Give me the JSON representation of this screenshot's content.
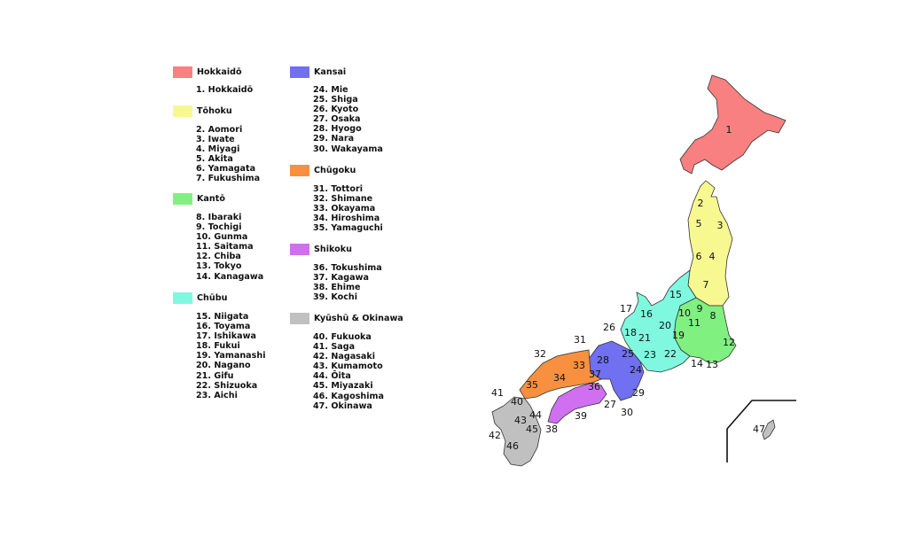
{
  "regions": [
    {
      "name": "Hokkaidō",
      "color": "#f88080",
      "prefectures": [
        "1. Hokkaidō"
      ]
    },
    {
      "name": "Tōhoku",
      "color": "#f8f890",
      "prefectures": [
        "2. Aomori",
        "3. Iwate",
        "4. Miyagi",
        "5. Akita",
        "6. Yamagata",
        "7. Fukushima"
      ]
    },
    {
      "name": "Kantō",
      "color": "#80f080",
      "prefectures": [
        "8. Ibaraki",
        "9. Tochigi",
        "10. Gunma",
        "11. Saitama",
        "12. Chiba",
        "13. Tokyo",
        "14. Kanagawa"
      ]
    },
    {
      "name": "Chūbu",
      "color": "#80f8e0",
      "prefectures": [
        "15. Niigata",
        "16. Toyama",
        "17. Ishikawa",
        "18. Fukui",
        "19. Yamanashi",
        "20. Nagano",
        "21. Gifu",
        "22. Shizuoka",
        "23. Aichi"
      ]
    },
    {
      "name": "Kansai",
      "color": "#7070f0",
      "prefectures": [
        "24. Mie",
        "25. Shiga",
        "26. Kyoto",
        "27. Osaka",
        "28. Hyogo",
        "29. Nara",
        "30. Wakayama"
      ]
    },
    {
      "name": "Chūgoku",
      "color": "#f89040",
      "prefectures": [
        "31. Tottori",
        "32. Shimane",
        "33. Okayama",
        "34. Hiroshima",
        "35. Yamaguchi"
      ]
    },
    {
      "name": "Shikoku",
      "color": "#d070f0",
      "prefectures": [
        "36. Tokushima",
        "37. Kagawa",
        "38. Ehime",
        "39. Kochi"
      ]
    },
    {
      "name": "Kyūshū & Okinawa",
      "color": "#c0c0c0",
      "prefectures": [
        "40. Fukuoka",
        "41. Saga",
        "42. Nagasaki",
        "43. Kumamoto",
        "44. Ōita",
        "45. Miyazaki",
        "46. Kagoshima",
        "47. Okinawa"
      ]
    }
  ],
  "map_labels": [
    "1",
    "2",
    "3",
    "4",
    "5",
    "6",
    "7",
    "8",
    "9",
    "10",
    "11",
    "12",
    "13",
    "14",
    "15",
    "16",
    "17",
    "18",
    "19",
    "20",
    "21",
    "22",
    "23",
    "24",
    "25",
    "26",
    "27",
    "28",
    "29",
    "30",
    "31",
    "32",
    "33",
    "34",
    "35",
    "36",
    "37",
    "38",
    "39",
    "40",
    "41",
    "42",
    "43",
    "44",
    "45",
    "46",
    "47"
  ]
}
